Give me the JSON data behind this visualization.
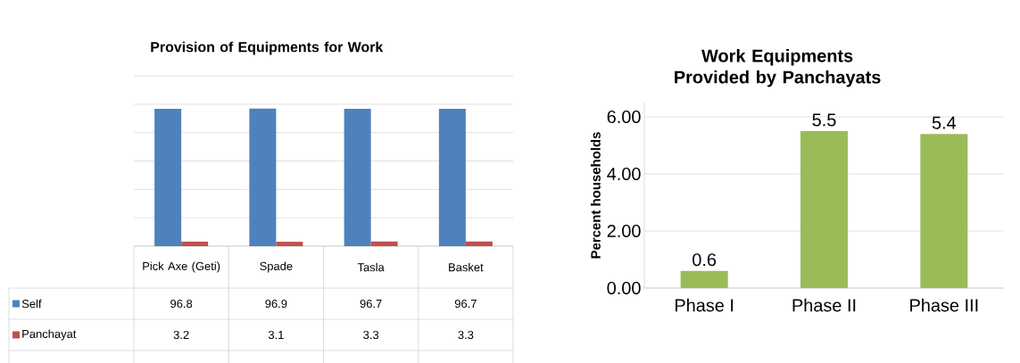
{
  "chart_data": [
    {
      "type": "bar",
      "title": "Provision of Equipments for Work",
      "categories": [
        "Pick Axe (Geti)",
        "Spade",
        "Tasla",
        "Basket"
      ],
      "series": [
        {
          "name": "Self",
          "color": "#4f81bd",
          "values": [
            96.8,
            96.9,
            96.7,
            96.7
          ]
        },
        {
          "name": "Panchayat",
          "color": "#c0504d",
          "values": [
            3.2,
            3.1,
            3.3,
            3.3
          ]
        }
      ],
      "ylim": [
        0,
        120
      ],
      "yticks": [
        {
          "value": 0,
          "label": null
        },
        {
          "value": 20,
          "label": null
        },
        {
          "value": 40,
          "label": null
        },
        {
          "value": 60,
          "label": null
        },
        {
          "value": 80,
          "label": null
        },
        {
          "value": 100,
          "label": null
        },
        {
          "value": 120,
          "label": null
        }
      ],
      "grid": "y",
      "legend": "bottom",
      "data_labels": true,
      "tick_labels": "x"
    },
    {
      "type": "bar",
      "title": "Work Equipments Provided by Panchayats",
      "ylabel": "Percent households",
      "categories": [
        "Phase I",
        "Phase II",
        "Phase III"
      ],
      "values": [
        0.6,
        5.5,
        5.4
      ],
      "color": "#9bbb59",
      "ylim": [
        0,
        6.5
      ],
      "yticks": [
        {
          "value": 0,
          "label": "0.00"
        },
        {
          "value": 2,
          "label": "2.00"
        },
        {
          "value": 4,
          "label": "4.00"
        },
        {
          "value": 6,
          "label": "6.00"
        }
      ],
      "grid": "y",
      "data_labels": true
    }
  ]
}
